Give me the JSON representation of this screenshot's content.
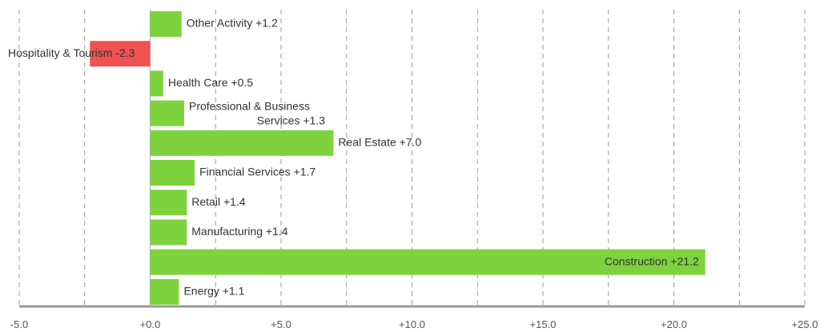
{
  "chart_data": {
    "type": "bar",
    "orientation": "horizontal",
    "title": "",
    "xlabel": "",
    "ylabel": "",
    "xlim": [
      -5,
      25
    ],
    "grid": true,
    "legend": "none",
    "positive_color": "#7ed23e",
    "negative_color": "#f05252",
    "axis_color": "#999999",
    "categories": [
      "Other Activity",
      "Hospitality & Tourism",
      "Health Care",
      "Professional & Business Services",
      "Real Estate",
      "Financial Services",
      "Retail",
      "Manufacturing",
      "Construction",
      "Energy"
    ],
    "values": [
      1.2,
      -2.3,
      0.5,
      1.3,
      7.0,
      1.7,
      1.4,
      1.4,
      21.2,
      1.1
    ],
    "labels": [
      [
        "Other Activity +1.2"
      ],
      [
        "Hospitality & Tourism -2.3"
      ],
      [
        "Health Care +0.5"
      ],
      [
        "Professional & Business",
        "Services +1.3"
      ],
      [
        "Real Estate +7.0"
      ],
      [
        "Financial Services +1.7"
      ],
      [
        "Retail +1.4"
      ],
      [
        "Manufacturing +1.4"
      ],
      [
        "Construction +21.2"
      ],
      [
        "Energy +1.1"
      ]
    ],
    "x_ticks": [
      -5,
      0,
      5,
      10,
      15,
      20,
      25
    ],
    "x_tick_labels": [
      "-5.0",
      "+0.0",
      "+5.0",
      "+10.0",
      "+15.0",
      "+20.0",
      "+25.0"
    ],
    "gridlines": [
      -2.5,
      2.5,
      7.5,
      12.5,
      17.5,
      22.5
    ]
  }
}
